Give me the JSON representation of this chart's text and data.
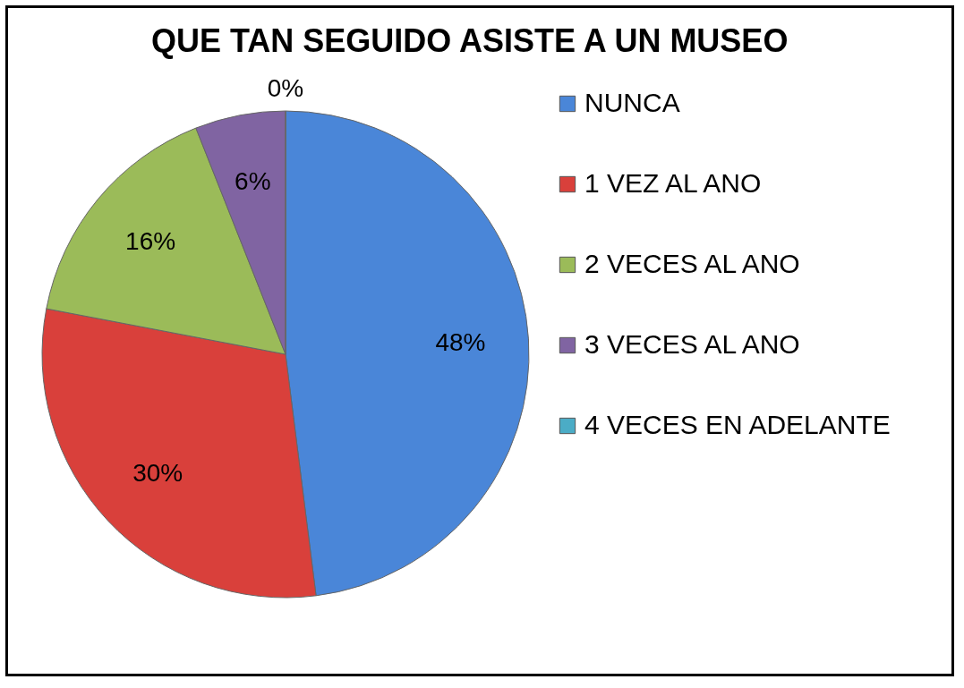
{
  "chart_data": {
    "type": "pie",
    "title": "QUE TAN SEGUIDO ASISTE A UN MUSEO",
    "categories": [
      "NUNCA",
      "1 VEZ AL ANO",
      "2 VECES AL ANO",
      "3 VECES AL ANO",
      "4 VECES EN ADELANTE"
    ],
    "values": [
      48,
      30,
      16,
      6,
      0
    ],
    "value_labels": [
      "48%",
      "30%",
      "16%",
      "6%",
      "0%"
    ],
    "colors": [
      "#4a86d8",
      "#d9403b",
      "#9bbb59",
      "#8064a2",
      "#4bacc6"
    ],
    "legend": "right"
  }
}
